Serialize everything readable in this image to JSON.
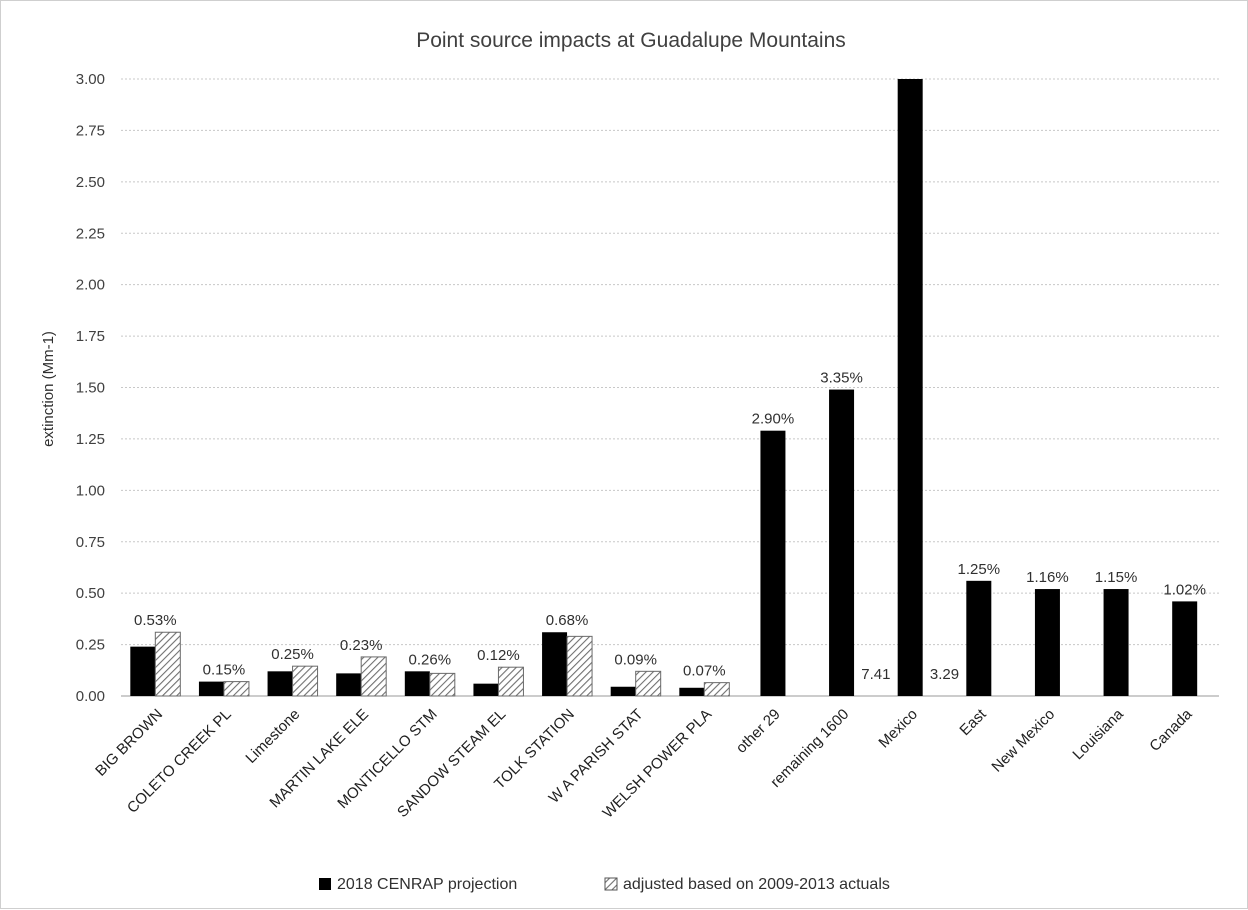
{
  "chart_data": {
    "type": "bar",
    "title": "Point source impacts at Guadalupe Mountains",
    "xlabel": "",
    "ylabel": "extinction (Mm-1)",
    "ylim": [
      0,
      3.0
    ],
    "yticks": [
      "0.00",
      "0.25",
      "0.50",
      "0.75",
      "1.00",
      "1.25",
      "1.50",
      "1.75",
      "2.00",
      "2.25",
      "2.50",
      "2.75",
      "3.00"
    ],
    "grid": true,
    "legend_position": "bottom",
    "categories": [
      "BIG BROWN",
      "COLETO CREEK PL",
      "Limestone",
      "MARTIN LAKE ELE",
      "MONTICELLO STM",
      "SANDOW STEAM EL",
      "TOLK STATION",
      "W A PARISH STAT",
      "WELSH POWER PLA",
      "other 29",
      "remaining 1600",
      "Mexico",
      "East",
      "New Mexico",
      "Louisiana",
      "Canada"
    ],
    "series": [
      {
        "name": "2018 CENRAP projection",
        "color": "#000000",
        "pattern": "solid",
        "values": [
          0.24,
          0.07,
          0.12,
          0.11,
          0.12,
          0.06,
          0.31,
          0.045,
          0.04,
          1.29,
          1.49,
          3.0,
          0.56,
          0.52,
          0.52,
          0.46
        ]
      },
      {
        "name": "adjusted based on 2009-2013 actuals",
        "color": "#808080",
        "pattern": "hatch",
        "values": [
          0.31,
          0.07,
          0.145,
          0.19,
          0.11,
          0.14,
          0.29,
          0.12,
          0.065,
          null,
          null,
          null,
          null,
          null,
          null,
          null
        ]
      }
    ],
    "data_labels": [
      "0.53%",
      "0.15%",
      "0.25%",
      "0.23%",
      "0.26%",
      "0.12%",
      "0.68%",
      "0.09%",
      "0.07%",
      "2.90%",
      "3.35%",
      "",
      "1.25%",
      "1.16%",
      "1.15%",
      "1.02%"
    ],
    "extra_labels": [
      {
        "text": "7.41",
        "category": "remaining 1600"
      },
      {
        "text": "3.29",
        "category": "Mexico"
      }
    ]
  }
}
